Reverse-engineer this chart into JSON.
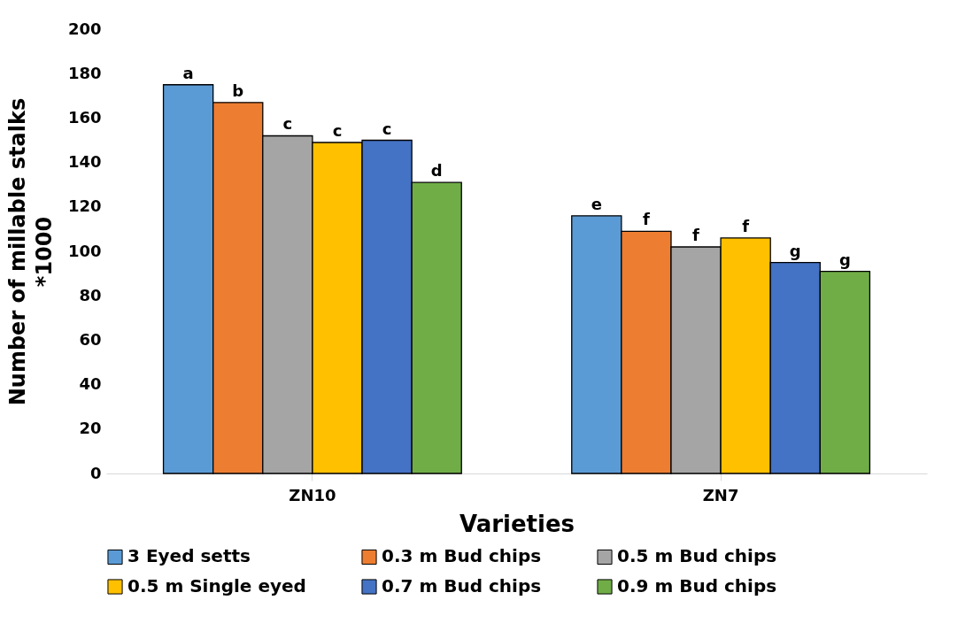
{
  "chart_data": {
    "type": "bar",
    "xlabel": "Varieties",
    "ylabel": "Number of millable stalks *1000",
    "categories": [
      "ZN10",
      "ZN7"
    ],
    "series": [
      {
        "name": "3 Eyed setts",
        "color": "#5b9bd5",
        "values": [
          175,
          116
        ],
        "value_labels": [
          "a",
          "e"
        ]
      },
      {
        "name": "0.3 m Bud chips",
        "color": "#ed7d31",
        "values": [
          167,
          109
        ],
        "value_labels": [
          "b",
          "f"
        ]
      },
      {
        "name": "0.5 m Bud chips",
        "color": "#a5a5a5",
        "values": [
          152,
          102
        ],
        "value_labels": [
          "c",
          "f"
        ]
      },
      {
        "name": "0.5 m Single eyed",
        "color": "#ffc000",
        "values": [
          149,
          106
        ],
        "value_labels": [
          "c",
          "f"
        ]
      },
      {
        "name": "0.7 m Bud chips",
        "color": "#4472c4",
        "values": [
          150,
          95
        ],
        "value_labels": [
          "c",
          "g"
        ]
      },
      {
        "name": "0.9 m Bud chips",
        "color": "#70ad47",
        "values": [
          131,
          91
        ],
        "value_labels": [
          "d",
          "g"
        ]
      }
    ],
    "ylim": [
      0,
      200
    ],
    "yticks": [
      0,
      20,
      40,
      60,
      80,
      100,
      120,
      140,
      160,
      180,
      200
    ],
    "grid": false,
    "legend": "bottom"
  }
}
